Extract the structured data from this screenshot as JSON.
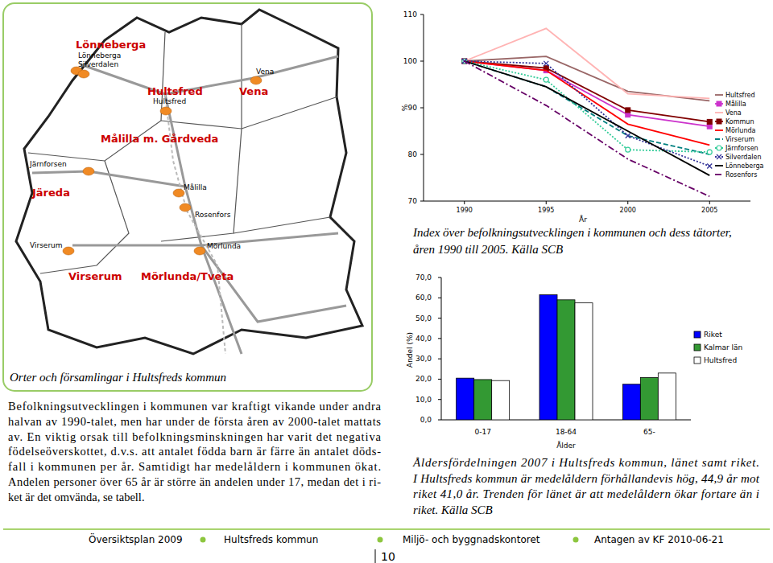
{
  "map": {
    "parishes": [
      "Lönneberga",
      "Hultsfred",
      "Vena",
      "Målilla m. Gårdveda",
      "Järeda",
      "Virserum",
      "Mörlunda/Tveta"
    ],
    "towns": [
      "Lönneberga",
      "Silverdalen",
      "Hultsfred",
      "Vena",
      "Järnforsen",
      "Målilla",
      "Rosenfors",
      "Virserum",
      "Mörlunda"
    ],
    "caption": "Orter och församlingar i Hultsfreds kommun"
  },
  "chart_data": [
    {
      "type": "line",
      "x_label": "År",
      "y_label": "%",
      "caption": [
        "Index över befolkningsutvecklingen i kommunen och dess tätorter,",
        "åren 1990 till 2005. Källa SCB"
      ],
      "x": [
        1990,
        1995,
        2000,
        2005
      ],
      "xlim": [
        1987.5,
        2007.5
      ],
      "xticks": [
        1990,
        1995,
        2000,
        2005
      ],
      "ylim": [
        70,
        110
      ],
      "yticks": [
        70,
        80,
        90,
        100,
        110
      ],
      "grid": false,
      "legend": "right",
      "series": [
        {
          "name": "Hultsfred",
          "color": "#996666",
          "line_style": "solid",
          "marker": "none",
          "values": [
            100,
            101,
            93.5,
            91.5
          ]
        },
        {
          "name": "Målilla",
          "color": "#cc33cc",
          "line_style": "solid",
          "marker": "square",
          "values": [
            100,
            98,
            88.5,
            86
          ]
        },
        {
          "name": "Vena",
          "color": "#ffb3b3",
          "line_style": "solid",
          "marker": "none",
          "values": [
            100,
            107,
            93,
            92
          ]
        },
        {
          "name": "Kommun",
          "color": "#800000",
          "line_style": "solid",
          "marker": "square",
          "values": [
            100,
            98.5,
            89.5,
            87
          ]
        },
        {
          "name": "Mörlunda",
          "color": "#ff0000",
          "line_style": "solid",
          "marker": "none",
          "values": [
            100,
            98,
            86.5,
            82
          ]
        },
        {
          "name": "Virserum",
          "color": "#008080",
          "line_style": "dashed",
          "marker": "none",
          "values": [
            100,
            94.5,
            84,
            80
          ]
        },
        {
          "name": "Järnforsen",
          "color": "#33cc99",
          "line_style": "dotted",
          "marker": "circle",
          "values": [
            100,
            96,
            81,
            80.5
          ]
        },
        {
          "name": "Silverdalen",
          "color": "#333399",
          "line_style": "dotted",
          "marker": "x",
          "values": [
            100,
            99.5,
            84,
            77.5
          ]
        },
        {
          "name": "Lönneberga",
          "color": "#000000",
          "line_style": "solid",
          "marker": "none",
          "values": [
            100,
            94.5,
            85,
            75.5
          ]
        },
        {
          "name": "Rosenfors",
          "color": "#660066",
          "line_style": "dashdot",
          "marker": "none",
          "values": [
            100,
            90.5,
            79,
            71
          ]
        }
      ]
    },
    {
      "type": "bar",
      "x_label": "Ålder",
      "y_label": "Andel (%)",
      "caption": [
        "Åldersfördelningen 2007 i Hultsfreds kommun, länet samt riket.",
        "I Hultsfreds kommun är medelåldern förhållandevis hög, 44,9 år mot",
        "riket 41,0 år. Trenden för länet är att medelåldern ökar fortare än i",
        "riket. Källa SCB"
      ],
      "categories": [
        "0-17",
        "18-64",
        "65-"
      ],
      "ylim": [
        0,
        70
      ],
      "yticks": [
        {
          "value": 0,
          "label": "0,0"
        },
        {
          "value": 10,
          "label": "10,0"
        },
        {
          "value": 20,
          "label": "20,0"
        },
        {
          "value": 30,
          "label": "30,0"
        },
        {
          "value": 40,
          "label": "40,0"
        },
        {
          "value": 50,
          "label": "50,0"
        },
        {
          "value": 60,
          "label": "60,0"
        },
        {
          "value": 70,
          "label": "70,0"
        }
      ],
      "grid": false,
      "legend": "right",
      "series": [
        {
          "name": "Riket",
          "color": "#0000ff",
          "values": [
            20.5,
            61.5,
            17.5
          ]
        },
        {
          "name": "Kalmar län",
          "color": "#339933",
          "values": [
            19.8,
            59.0,
            20.8
          ]
        },
        {
          "name": "Hultsfred",
          "color": "#ffffff",
          "values": [
            19.3,
            57.5,
            23.0
          ]
        }
      ]
    }
  ],
  "body_text": [
    "Befolkningsutvecklingen i kommunen var kraftigt vikande under andra",
    "halvan av 1990-talet, men har under de första åren av 2000-talet mattats",
    "av. En viktig orsak till befolkningsminskningen har varit det negativa",
    "födelseöverskottet, d.v.s. att antalet födda barn är färre än antalet döds-",
    "fall i kommunen per år. Samtidigt har medelåldern i kommunen ökat.",
    "Andelen personer över 65 år är större än andelen under 17, medan det i ri-",
    "ket är det omvända, se tabell."
  ],
  "footer": {
    "items": [
      "Översiktsplan 2009",
      "Hultsfreds kommun",
      "Miljö- och byggnadskontoret",
      "Antagen av KF 2010-06-21"
    ],
    "page_number": "10"
  }
}
